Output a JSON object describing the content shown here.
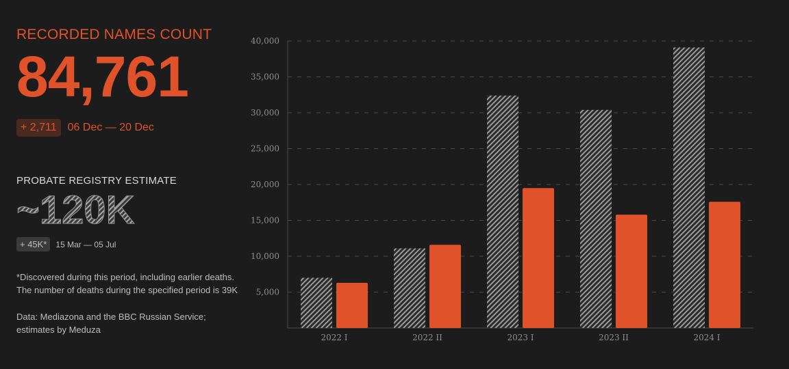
{
  "recorded": {
    "title": "RECORDED NAMES COUNT",
    "count": "84,761",
    "delta": "+ 2,711",
    "period": "06 Dec — 20 Dec"
  },
  "probate": {
    "title": "PROBATE REGISTRY ESTIMATE",
    "estimate": "~120K",
    "delta": "+ 45K*",
    "period": "15 Mar — 05 Jul"
  },
  "note": {
    "line1": "*Discovered during this period, including earlier deaths.",
    "line2": "The number of deaths during the specified period is 39K"
  },
  "source": {
    "line1": "Data: Mediazona and the BBC Russian Service;",
    "line2": "estimates by Meduza"
  },
  "colors": {
    "accent": "#e0522a",
    "hatch": "#8a8a8a",
    "background": "#1c1c1c"
  },
  "chart_data": {
    "type": "bar",
    "categories": [
      "2022 I",
      "2022 II",
      "2023 I",
      "2023 II",
      "2024 I"
    ],
    "series": [
      {
        "values": [
          7000,
          11100,
          32400,
          30400,
          39100
        ],
        "style": "hatched-gray"
      },
      {
        "values": [
          6300,
          11600,
          19500,
          15800,
          17600
        ],
        "style": "solid-orange"
      }
    ],
    "ylim": [
      0,
      40000
    ],
    "yticks": [
      "5,000",
      "10,000",
      "15,000",
      "20,000",
      "25,000",
      "30,000",
      "35,000",
      "40,000"
    ],
    "ytick_values": [
      5000,
      10000,
      15000,
      20000,
      25000,
      30000,
      35000,
      40000
    ],
    "grid": true
  }
}
